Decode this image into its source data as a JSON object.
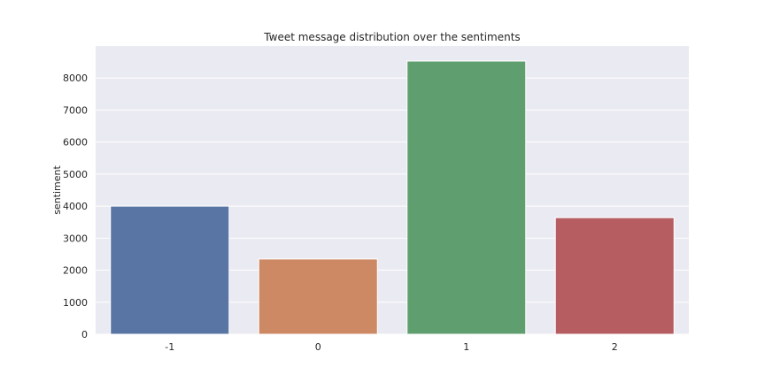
{
  "chart_data": {
    "type": "bar",
    "title": "Tweet message distribution over the sentiments",
    "xlabel": "",
    "ylabel": "sentiment",
    "categories": [
      "-1",
      "0",
      "1",
      "2"
    ],
    "values": [
      4000,
      2350,
      8530,
      3640
    ],
    "colors": [
      "#5975a4",
      "#cc8963",
      "#5f9e6e",
      "#b55d60"
    ],
    "ylim": [
      0,
      9000
    ],
    "yticks": [
      0,
      1000,
      2000,
      3000,
      4000,
      5000,
      6000,
      7000,
      8000
    ],
    "grid": true,
    "background": "#eaeaf2"
  }
}
